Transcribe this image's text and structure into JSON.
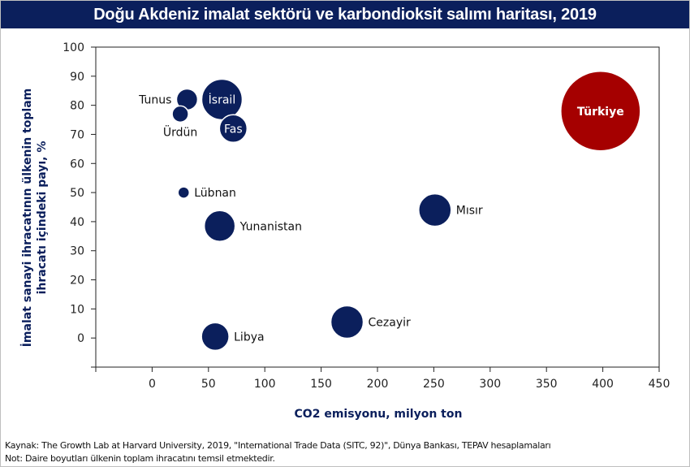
{
  "title": "Doğu Akdeniz imalat sektörü ve karbondioksit salımı haritası, 2019",
  "footer": {
    "source": "Kaynak: The Growth Lab at Harvard University, 2019, \"International Trade Data (SITC, 92)\", Dünya Bankası, TEPAV hesaplamaları",
    "note": "Not: Daire boyutları ülkenin toplam ihracatını temsil etmektedir."
  },
  "colors": {
    "title_bg": "#0b1f5c",
    "bubble_default": "#0b1f5c",
    "bubble_highlight": "#a50000",
    "axis_title": "#0b1f5c"
  },
  "chart_data": {
    "type": "bubble",
    "title": "Doğu Akdeniz imalat sektörü ve karbondioksit salımı haritası, 2019",
    "xlabel": "CO2 emisyonu, milyon ton",
    "ylabel_line1": "İmalat sanayi ihracatının ülkenin toplam",
    "ylabel_line2": "ihracatı içindeki payı, %",
    "xlim": [
      -50,
      450
    ],
    "ylim": [
      -10,
      100
    ],
    "x_ticks": [
      0,
      50,
      100,
      150,
      200,
      250,
      300,
      350,
      400,
      450
    ],
    "y_ticks": [
      0,
      10,
      20,
      30,
      40,
      50,
      60,
      70,
      80,
      90,
      100
    ],
    "grid": false,
    "legend": "none",
    "size_meaning": "Ülkenin toplam ihracatı (göreli)",
    "points": [
      {
        "label": "Tunus",
        "x": 31,
        "y": 82,
        "r": 13,
        "label_pos": "left",
        "color": "#0b1f5c"
      },
      {
        "label": "Ürdün",
        "x": 25,
        "y": 77,
        "r": 10,
        "label_pos": "below",
        "color": "#0b1f5c"
      },
      {
        "label": "İsrail",
        "x": 62,
        "y": 82,
        "r": 25,
        "label_pos": "inside",
        "color": "#0b1f5c"
      },
      {
        "label": "Fas",
        "x": 72,
        "y": 72,
        "r": 17,
        "label_pos": "inside",
        "color": "#0b1f5c"
      },
      {
        "label": "Lübnan",
        "x": 28,
        "y": 50,
        "r": 7,
        "label_pos": "right",
        "color": "#0b1f5c"
      },
      {
        "label": "Yunanistan",
        "x": 60,
        "y": 38.5,
        "r": 19,
        "label_pos": "right",
        "color": "#0b1f5c"
      },
      {
        "label": "Libya",
        "x": 56,
        "y": 0.5,
        "r": 17,
        "label_pos": "right",
        "color": "#0b1f5c"
      },
      {
        "label": "Cezayir",
        "x": 173,
        "y": 5.5,
        "r": 20,
        "label_pos": "right",
        "color": "#0b1f5c"
      },
      {
        "label": "Mısır",
        "x": 251,
        "y": 44,
        "r": 20,
        "label_pos": "right",
        "color": "#0b1f5c"
      },
      {
        "label": "Türkiye",
        "x": 398,
        "y": 78,
        "r": 49,
        "label_pos": "inside",
        "color": "#a50000"
      }
    ]
  }
}
